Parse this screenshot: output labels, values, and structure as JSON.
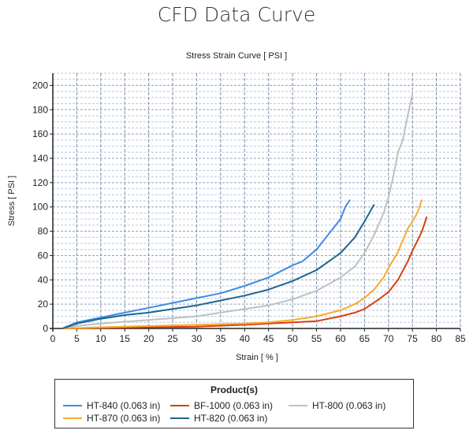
{
  "page_title": "CFD Data Curve",
  "chart_data": {
    "type": "line",
    "title": "Stress Strain Curve [ PSI ]",
    "xlabel": "Strain [ % ]",
    "ylabel": "Stress [ PSI ]",
    "xlim": [
      0,
      85
    ],
    "ylim": [
      0,
      210
    ],
    "xticks": [
      0,
      5,
      10,
      15,
      20,
      25,
      30,
      35,
      40,
      45,
      50,
      55,
      60,
      65,
      70,
      75,
      80,
      85
    ],
    "yticks": [
      0,
      20,
      40,
      60,
      80,
      100,
      120,
      140,
      160,
      180,
      200
    ],
    "grid": true,
    "legend": {
      "title": "Product(s)",
      "placement": "bottom"
    },
    "series": [
      {
        "name": "HT-840 (0.063 in)",
        "color": "#3d8be6",
        "x": [
          2,
          5,
          10,
          15,
          20,
          25,
          30,
          35,
          40,
          45,
          50,
          52,
          55,
          57,
          60,
          61,
          62
        ],
        "y": [
          0,
          5,
          9,
          13,
          17,
          21,
          25,
          29,
          35,
          42,
          52,
          55,
          65,
          75,
          90,
          100,
          106
        ]
      },
      {
        "name": "BF-1000 (0.063 in)",
        "color": "#d8400f",
        "x": [
          3,
          10,
          20,
          30,
          40,
          50,
          55,
          60,
          63,
          65,
          68,
          70,
          72,
          74,
          75,
          76,
          77,
          78
        ],
        "y": [
          0,
          0.5,
          1,
          1.5,
          3,
          5,
          6,
          10,
          13,
          16,
          24,
          30,
          40,
          55,
          64,
          72,
          80,
          92
        ]
      },
      {
        "name": "HT-800 (0.063 in)",
        "color": "#c0c0c0",
        "x": [
          2,
          5,
          10,
          20,
          30,
          35,
          40,
          45,
          50,
          55,
          60,
          63,
          65,
          67,
          69,
          70,
          71,
          72,
          73,
          74,
          75
        ],
        "y": [
          0,
          2,
          4,
          7,
          10,
          13,
          16,
          19,
          24,
          31,
          42,
          51,
          62,
          77,
          95,
          108,
          125,
          145,
          155,
          175,
          193
        ]
      },
      {
        "name": "HT-870 (0.063 in)",
        "color": "#f7aa2c",
        "x": [
          2,
          10,
          20,
          30,
          40,
          45,
          50,
          55,
          60,
          63,
          65,
          67,
          69,
          70,
          72,
          74,
          75,
          76,
          77
        ],
        "y": [
          0,
          1,
          2,
          3,
          4,
          5,
          7,
          10,
          15,
          20,
          25,
          32,
          42,
          50,
          63,
          82,
          88,
          95,
          106
        ]
      },
      {
        "name": "HT-820 (0.063 in)",
        "color": "#1c6590",
        "x": [
          2,
          5,
          10,
          15,
          20,
          25,
          30,
          35,
          40,
          45,
          50,
          55,
          60,
          63,
          65,
          67
        ],
        "y": [
          0,
          4,
          8,
          11,
          13,
          16,
          19,
          23,
          27,
          32,
          39,
          48,
          62,
          75,
          88,
          102
        ]
      }
    ]
  }
}
